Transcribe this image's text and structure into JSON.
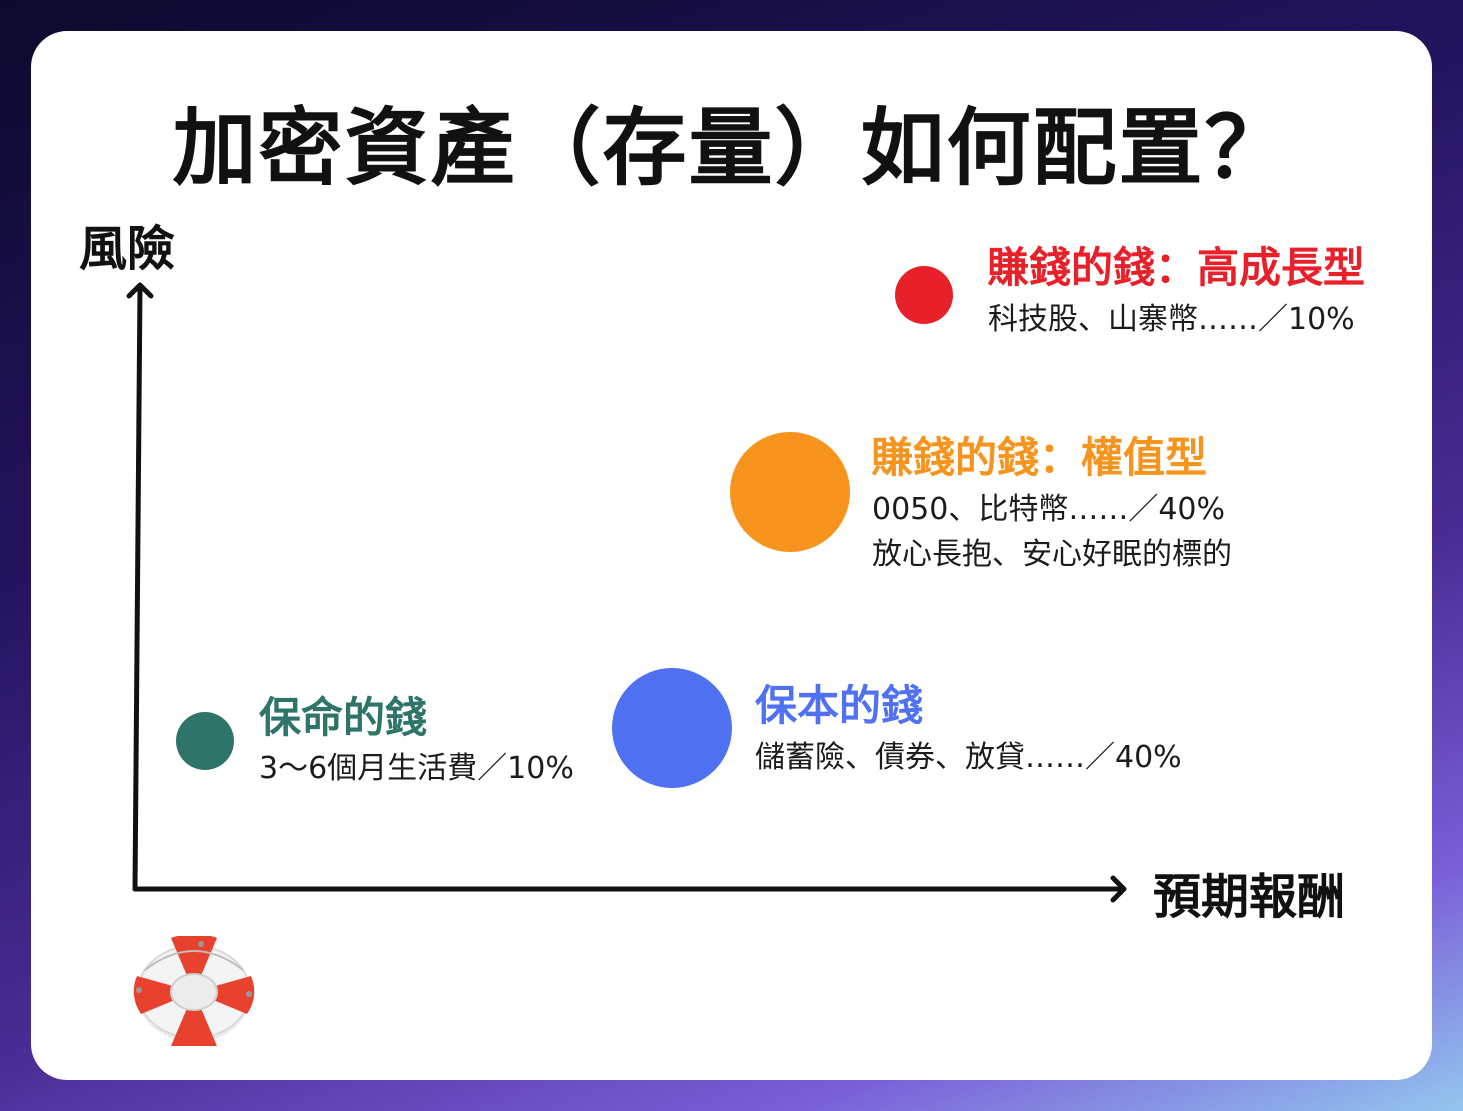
{
  "title": "加密資產（存量）如何配置？",
  "axes": {
    "y_label": "風險",
    "x_label": "預期報酬"
  },
  "groups": [
    {
      "title": "賺錢的錢：高成長型",
      "lines": [
        "科技股、山寨幣……／10%"
      ],
      "color": "#e8202a"
    },
    {
      "title": "賺錢的錢：權值型",
      "lines": [
        "0050、比特幣……／40%",
        "放心長抱、安心好眠的標的"
      ],
      "color": "#f7941d"
    },
    {
      "title": "保命的錢",
      "lines": [
        "3～6個月生活費／10%"
      ],
      "color": "#2e7468"
    },
    {
      "title": "保本的錢",
      "lines": [
        "儲蓄險、債券、放貸……／40%"
      ],
      "color": "#5071f2"
    }
  ],
  "icons": {
    "lifebuoy": "lifebuoy-icon"
  }
}
